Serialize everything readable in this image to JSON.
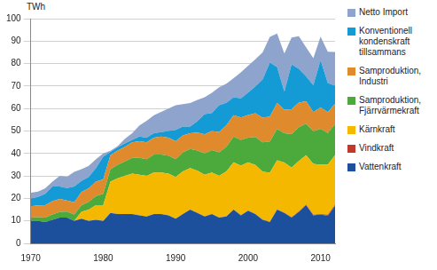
{
  "chart_data": {
    "type": "stacked_area",
    "y_label": "TWh",
    "legend": "right",
    "stacked": true,
    "grid": true,
    "x": [
      1970,
      1971,
      1972,
      1973,
      1974,
      1975,
      1976,
      1977,
      1978,
      1979,
      1980,
      1981,
      1982,
      1983,
      1984,
      1985,
      1986,
      1987,
      1988,
      1989,
      1990,
      1991,
      1992,
      1993,
      1994,
      1995,
      1996,
      1997,
      1998,
      1999,
      2000,
      2001,
      2002,
      2003,
      2004,
      2005,
      2006,
      2007,
      2008,
      2009,
      2010,
      2011,
      2012
    ],
    "xlim": [
      1970,
      2012
    ],
    "xticks": [
      1970,
      1980,
      1990,
      2000,
      2010
    ],
    "ylim": [
      0,
      100
    ],
    "yticks": [
      0,
      10,
      20,
      30,
      40,
      50,
      60,
      70,
      80,
      90,
      100
    ],
    "series": [
      {
        "name": "Vattenkraft",
        "color": "#1c4f9c",
        "values": [
          10,
          10,
          9.5,
          10.5,
          11.5,
          11.5,
          10,
          11,
          10,
          10.5,
          10,
          13.5,
          13,
          13,
          13,
          12.5,
          12,
          13,
          13,
          12.5,
          11,
          13,
          15,
          13.5,
          12,
          13,
          11.5,
          12,
          15,
          12.5,
          14.5,
          13,
          10.5,
          9.5,
          15,
          13.5,
          11.5,
          14,
          17,
          12.5,
          12.8,
          12.3,
          16.7
        ]
      },
      {
        "name": "Vindkraft",
        "color": "#c0392b",
        "values": [
          0,
          0,
          0,
          0,
          0,
          0,
          0,
          0,
          0,
          0,
          0,
          0,
          0,
          0,
          0,
          0,
          0,
          0,
          0,
          0,
          0,
          0,
          0,
          0,
          0.01,
          0.01,
          0.01,
          0.02,
          0.02,
          0.05,
          0.08,
          0.07,
          0.06,
          0.09,
          0.12,
          0.17,
          0.15,
          0.19,
          0.26,
          0.28,
          0.29,
          0.48,
          0.49
        ]
      },
      {
        "name": "Kärnkraft",
        "color": "#f4b800",
        "values": [
          0,
          0,
          0,
          0,
          0,
          0,
          0,
          3,
          5,
          6.5,
          7,
          14,
          16,
          17,
          18,
          18,
          18,
          18.5,
          18.5,
          18.5,
          18.5,
          19,
          18.5,
          18.8,
          18.5,
          18.5,
          18.5,
          20,
          21,
          22,
          21.5,
          21.8,
          21.4,
          21.8,
          21.8,
          22.3,
          22,
          22.5,
          22,
          22.6,
          21.9,
          22.3,
          22
        ]
      },
      {
        "name": "Samproduktion, Fjärrvärmekraft",
        "color": "#4caa3c",
        "values": [
          1.5,
          1.7,
          2,
          2.3,
          2.5,
          2.6,
          2.8,
          3,
          3.5,
          4,
          5,
          5.5,
          6,
          6.5,
          7,
          7.5,
          7.5,
          8,
          8,
          8,
          8,
          8.5,
          8.5,
          9,
          9.5,
          10,
          10.5,
          11,
          11.5,
          11.5,
          11,
          12.5,
          13,
          14,
          14,
          13,
          15,
          15,
          14,
          14.5,
          16,
          14,
          14
        ]
      },
      {
        "name": "Samproduktion, Industri",
        "color": "#e08a2e",
        "values": [
          5,
          5.2,
          5.5,
          6,
          5.8,
          5,
          5.5,
          5.8,
          6,
          6.5,
          6.5,
          6.2,
          6.3,
          6.5,
          7,
          7.5,
          7.5,
          7.5,
          8,
          8,
          8,
          7.5,
          7,
          8,
          8.5,
          8.5,
          9,
          9.5,
          9.5,
          10,
          10,
          10.5,
          11,
          11,
          11.5,
          10.5,
          11,
          11,
          10,
          8.5,
          9.5,
          9.3,
          9
        ]
      },
      {
        "name": "Konventionell kondenskraft tillsammans",
        "color": "#149bd6",
        "values": [
          3.5,
          3.8,
          5,
          6.5,
          5.5,
          5.5,
          7,
          5,
          5,
          6,
          10,
          1.5,
          1.5,
          1.5,
          1,
          2,
          2,
          2,
          2,
          3,
          5,
          4,
          3,
          5,
          9,
          8,
          12,
          10,
          8,
          8.5,
          10,
          12,
          17,
          24,
          16,
          8,
          20,
          15,
          11,
          12,
          21,
          13,
          8
        ]
      },
      {
        "name": "Netto Import",
        "color": "#8fa4cc",
        "values": [
          2.5,
          2.3,
          2.5,
          2.2,
          4.7,
          5,
          6.5,
          5.2,
          5,
          4,
          1.5,
          0.5,
          0.5,
          2,
          3,
          5,
          7.5,
          8,
          9,
          10,
          11,
          10,
          10.5,
          9.5,
          7.5,
          9,
          8,
          8.5,
          8.5,
          11.5,
          12,
          12,
          12,
          11.5,
          15,
          17,
          12,
          14.5,
          13,
          12,
          10.5,
          13.9,
          15
        ]
      }
    ]
  }
}
